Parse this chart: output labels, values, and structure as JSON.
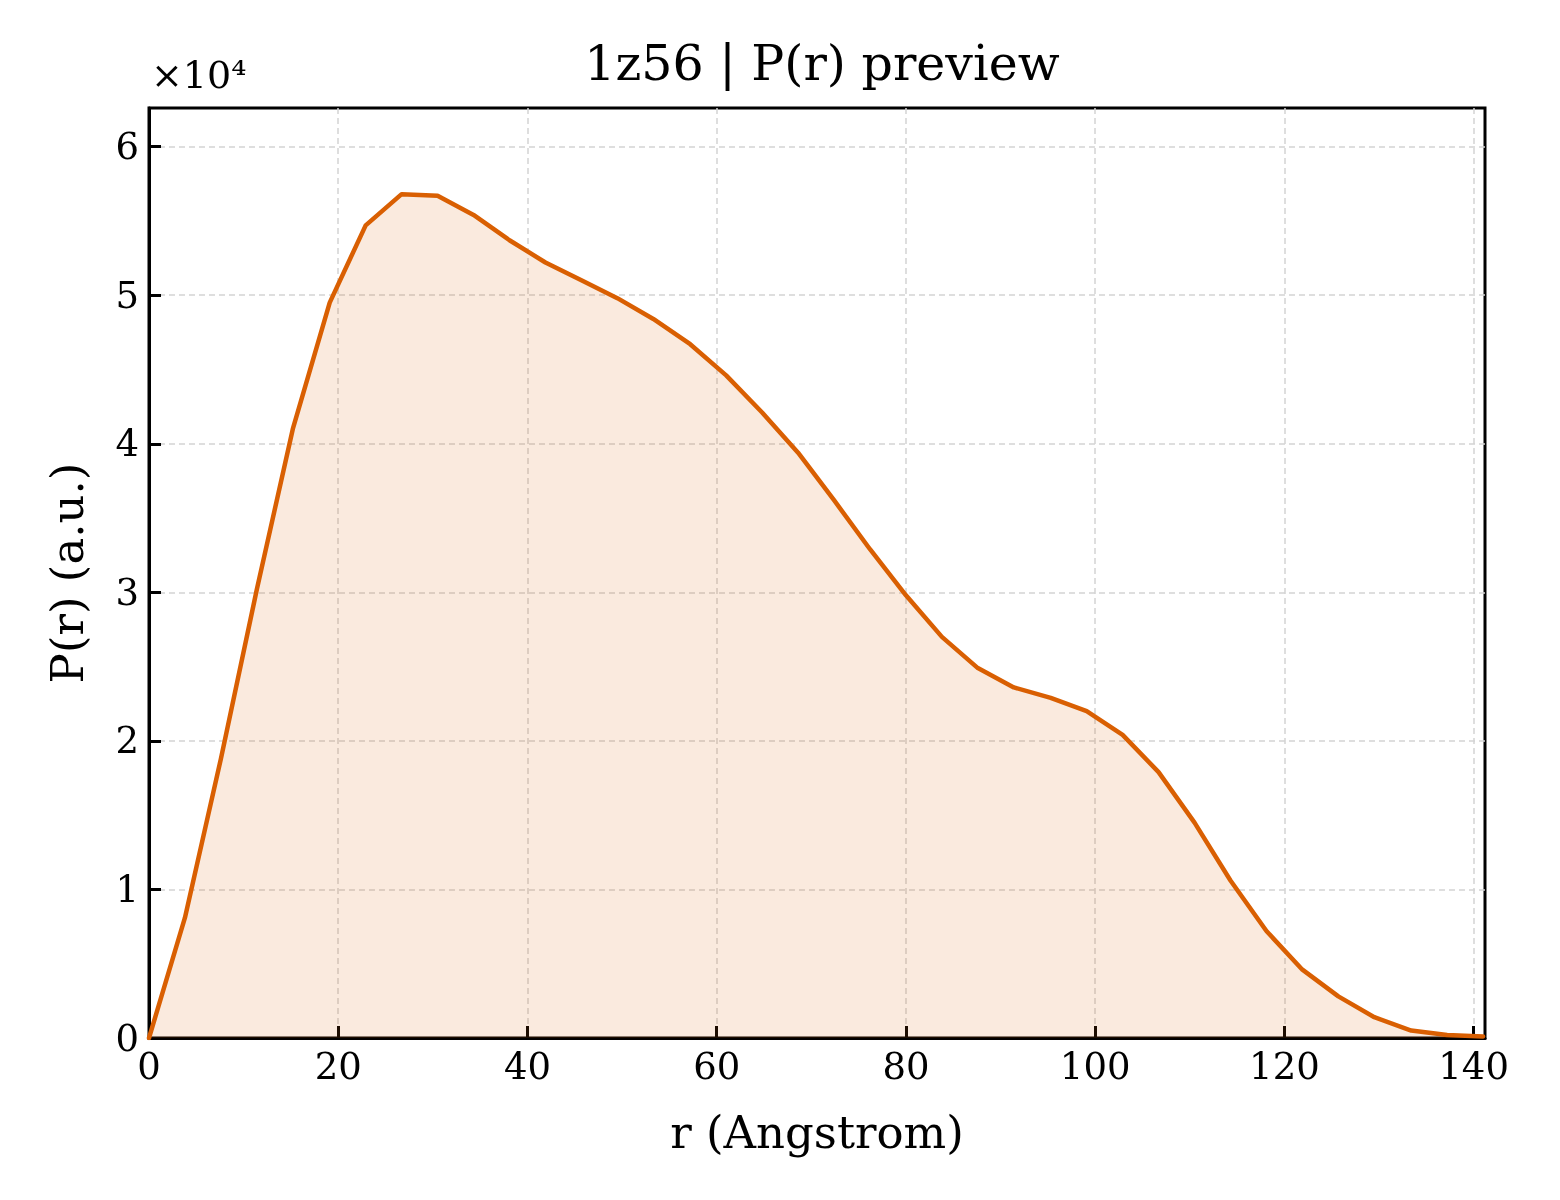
{
  "chart_data": {
    "type": "area",
    "title": "1z56 | P(r) preview",
    "xlabel": "r (Angstrom)",
    "ylabel": "P(r) (a.u.)",
    "annotations": [
      "×10⁴"
    ],
    "x": [
      0,
      3.8,
      7.6,
      11.4,
      15.2,
      19.1,
      22.9,
      26.7,
      30.5,
      34.3,
      38.1,
      41.9,
      45.7,
      49.5,
      53.3,
      57.2,
      61.0,
      64.8,
      68.6,
      72.4,
      76.2,
      80.0,
      83.8,
      87.6,
      91.4,
      95.3,
      99.1,
      102.9,
      106.7,
      110.5,
      114.3,
      118.1,
      121.9,
      125.7,
      129.5,
      133.4,
      137.2,
      141.0
    ],
    "values": [
      0,
      0.81,
      1.88,
      3.02,
      4.1,
      4.95,
      5.47,
      5.68,
      5.67,
      5.54,
      5.37,
      5.22,
      5.1,
      4.98,
      4.84,
      4.67,
      4.46,
      4.21,
      3.94,
      3.62,
      3.29,
      2.98,
      2.7,
      2.49,
      2.36,
      2.29,
      2.2,
      2.04,
      1.79,
      1.45,
      1.06,
      0.72,
      0.46,
      0.28,
      0.14,
      0.05,
      0.02,
      0.01
    ],
    "color": "#d95f02",
    "xlim": [
      0,
      141.2
    ],
    "ylim": [
      0,
      6.26
    ],
    "xticks": [
      0,
      20,
      40,
      60,
      80,
      100,
      120,
      140
    ],
    "yticks": [
      0,
      1,
      2,
      3,
      4,
      5,
      6
    ],
    "grid": true
  }
}
